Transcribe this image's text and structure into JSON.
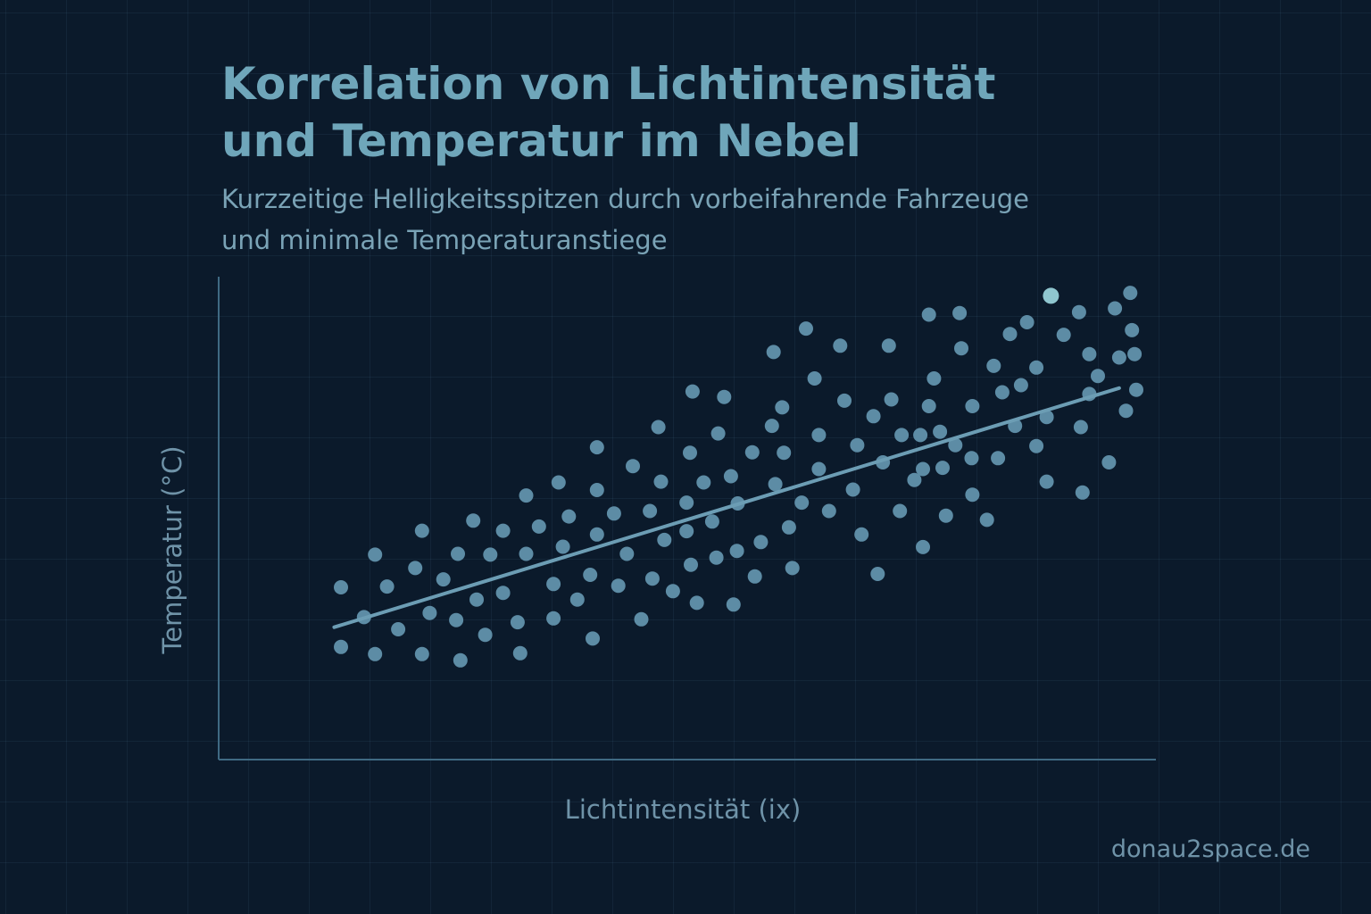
{
  "colors": {
    "background": "#0b1a2b",
    "title": "#6fa6ba",
    "text": "#7aa3b6",
    "axis": "#3f6a83",
    "point": "#5d8ca5",
    "highlight_point": "#8fc6cf",
    "trendline": "#6c9db4"
  },
  "footer": {
    "site": "donau2space.de"
  },
  "chart_data": {
    "type": "scatter",
    "title": "Korrelation von Lichtintensität\nund Temperatur im Nebel",
    "subtitle": "Kurzzeitige Helligkeitsspitzen durch vorbeifahrende Fahrzeuge\nund minimale Temperaturanstiege",
    "xlabel": "Lichtintensität (ix)",
    "ylabel": "Temperatur (°C)",
    "xlim": [
      0,
      100
    ],
    "ylim": [
      0,
      100
    ],
    "grid": true,
    "legend": "none",
    "tick_labels": "none",
    "trendline": {
      "x": [
        6,
        98
      ],
      "y": [
        19,
        76
      ]
    },
    "highlight_point": {
      "x": 90,
      "y": 98
    },
    "points": [
      {
        "x": 6.8,
        "y": 28.5
      },
      {
        "x": 6.8,
        "y": 14.3
      },
      {
        "x": 9.5,
        "y": 21.4
      },
      {
        "x": 10.8,
        "y": 36.3
      },
      {
        "x": 12.2,
        "y": 28.7
      },
      {
        "x": 10.8,
        "y": 12.6
      },
      {
        "x": 13.5,
        "y": 18.5
      },
      {
        "x": 15.5,
        "y": 33.1
      },
      {
        "x": 16.3,
        "y": 42.0
      },
      {
        "x": 17.2,
        "y": 22.4
      },
      {
        "x": 16.3,
        "y": 12.6
      },
      {
        "x": 18.8,
        "y": 30.4
      },
      {
        "x": 20.5,
        "y": 36.5
      },
      {
        "x": 20.3,
        "y": 20.7
      },
      {
        "x": 20.8,
        "y": 11.1
      },
      {
        "x": 22.3,
        "y": 44.4
      },
      {
        "x": 22.7,
        "y": 25.6
      },
      {
        "x": 23.7,
        "y": 17.2
      },
      {
        "x": 24.3,
        "y": 36.3
      },
      {
        "x": 25.8,
        "y": 42.0
      },
      {
        "x": 25.8,
        "y": 27.2
      },
      {
        "x": 27.5,
        "y": 20.2
      },
      {
        "x": 28.5,
        "y": 36.5
      },
      {
        "x": 28.5,
        "y": 50.4
      },
      {
        "x": 27.8,
        "y": 12.8
      },
      {
        "x": 30.0,
        "y": 43.0
      },
      {
        "x": 31.7,
        "y": 29.3
      },
      {
        "x": 31.7,
        "y": 21.1
      },
      {
        "x": 32.3,
        "y": 53.5
      },
      {
        "x": 32.8,
        "y": 38.2
      },
      {
        "x": 33.5,
        "y": 45.4
      },
      {
        "x": 34.5,
        "y": 25.6
      },
      {
        "x": 36.0,
        "y": 31.5
      },
      {
        "x": 36.8,
        "y": 61.9
      },
      {
        "x": 36.8,
        "y": 51.7
      },
      {
        "x": 36.8,
        "y": 41.1
      },
      {
        "x": 36.3,
        "y": 16.3
      },
      {
        "x": 38.8,
        "y": 46.1
      },
      {
        "x": 39.3,
        "y": 28.9
      },
      {
        "x": 40.3,
        "y": 36.5
      },
      {
        "x": 41.0,
        "y": 57.4
      },
      {
        "x": 43.0,
        "y": 46.7
      },
      {
        "x": 42.0,
        "y": 20.9
      },
      {
        "x": 43.3,
        "y": 30.6
      },
      {
        "x": 44.3,
        "y": 53.7
      },
      {
        "x": 44.0,
        "y": 66.7
      },
      {
        "x": 44.7,
        "y": 39.8
      },
      {
        "x": 45.7,
        "y": 27.6
      },
      {
        "x": 47.3,
        "y": 48.7
      },
      {
        "x": 47.7,
        "y": 60.6
      },
      {
        "x": 47.3,
        "y": 41.9
      },
      {
        "x": 47.8,
        "y": 33.9
      },
      {
        "x": 48.5,
        "y": 24.8
      },
      {
        "x": 48.0,
        "y": 75.2
      },
      {
        "x": 49.3,
        "y": 53.5
      },
      {
        "x": 50.3,
        "y": 44.2
      },
      {
        "x": 51.0,
        "y": 65.2
      },
      {
        "x": 50.8,
        "y": 35.6
      },
      {
        "x": 52.8,
        "y": 24.4
      },
      {
        "x": 51.7,
        "y": 73.9
      },
      {
        "x": 52.5,
        "y": 55.0
      },
      {
        "x": 53.2,
        "y": 37.2
      },
      {
        "x": 53.3,
        "y": 48.5
      },
      {
        "x": 55.0,
        "y": 60.7
      },
      {
        "x": 55.3,
        "y": 31.1
      },
      {
        "x": 56.0,
        "y": 39.3
      },
      {
        "x": 57.3,
        "y": 67.0
      },
      {
        "x": 57.7,
        "y": 53.1
      },
      {
        "x": 57.5,
        "y": 84.6
      },
      {
        "x": 58.5,
        "y": 71.4
      },
      {
        "x": 58.7,
        "y": 60.6
      },
      {
        "x": 59.3,
        "y": 42.8
      },
      {
        "x": 59.7,
        "y": 33.1
      },
      {
        "x": 60.8,
        "y": 48.7
      },
      {
        "x": 61.3,
        "y": 90.2
      },
      {
        "x": 62.3,
        "y": 78.3
      },
      {
        "x": 62.8,
        "y": 64.8
      },
      {
        "x": 62.8,
        "y": 56.7
      },
      {
        "x": 64.0,
        "y": 46.7
      },
      {
        "x": 65.3,
        "y": 86.1
      },
      {
        "x": 65.8,
        "y": 73.0
      },
      {
        "x": 66.8,
        "y": 51.8
      },
      {
        "x": 67.3,
        "y": 62.4
      },
      {
        "x": 67.8,
        "y": 41.1
      },
      {
        "x": 69.2,
        "y": 69.3
      },
      {
        "x": 69.7,
        "y": 31.7
      },
      {
        "x": 70.3,
        "y": 58.3
      },
      {
        "x": 71.0,
        "y": 86.1
      },
      {
        "x": 71.3,
        "y": 73.3
      },
      {
        "x": 72.5,
        "y": 64.8
      },
      {
        "x": 72.3,
        "y": 46.7
      },
      {
        "x": 74.0,
        "y": 54.1
      },
      {
        "x": 75.0,
        "y": 38.1
      },
      {
        "x": 75.7,
        "y": 71.7
      },
      {
        "x": 75.7,
        "y": 93.5
      },
      {
        "x": 74.7,
        "y": 64.8
      },
      {
        "x": 75.0,
        "y": 56.7
      },
      {
        "x": 76.3,
        "y": 78.3
      },
      {
        "x": 77.3,
        "y": 57.0
      },
      {
        "x": 77.7,
        "y": 45.6
      },
      {
        "x": 77.0,
        "y": 65.6
      },
      {
        "x": 78.8,
        "y": 62.4
      },
      {
        "x": 79.5,
        "y": 85.5
      },
      {
        "x": 79.3,
        "y": 93.9
      },
      {
        "x": 80.8,
        "y": 71.7
      },
      {
        "x": 80.7,
        "y": 59.3
      },
      {
        "x": 80.8,
        "y": 50.6
      },
      {
        "x": 83.3,
        "y": 81.3
      },
      {
        "x": 82.5,
        "y": 44.6
      },
      {
        "x": 83.8,
        "y": 59.3
      },
      {
        "x": 84.3,
        "y": 75.0
      },
      {
        "x": 85.2,
        "y": 88.9
      },
      {
        "x": 85.8,
        "y": 67.0
      },
      {
        "x": 86.5,
        "y": 76.7
      },
      {
        "x": 87.2,
        "y": 91.7
      },
      {
        "x": 88.3,
        "y": 62.2
      },
      {
        "x": 88.3,
        "y": 80.9
      },
      {
        "x": 89.5,
        "y": 69.1
      },
      {
        "x": 89.5,
        "y": 53.7
      },
      {
        "x": 91.5,
        "y": 88.7
      },
      {
        "x": 93.3,
        "y": 94.1
      },
      {
        "x": 93.5,
        "y": 66.7
      },
      {
        "x": 93.7,
        "y": 51.1
      },
      {
        "x": 94.5,
        "y": 74.6
      },
      {
        "x": 94.5,
        "y": 84.1
      },
      {
        "x": 95.5,
        "y": 78.9
      },
      {
        "x": 96.8,
        "y": 58.3
      },
      {
        "x": 97.5,
        "y": 95.0
      },
      {
        "x": 98.0,
        "y": 83.3
      },
      {
        "x": 98.8,
        "y": 70.6
      },
      {
        "x": 99.5,
        "y": 89.8
      },
      {
        "x": 99.3,
        "y": 98.7
      },
      {
        "x": 99.8,
        "y": 84.1
      },
      {
        "x": 100.0,
        "y": 75.6
      }
    ]
  }
}
